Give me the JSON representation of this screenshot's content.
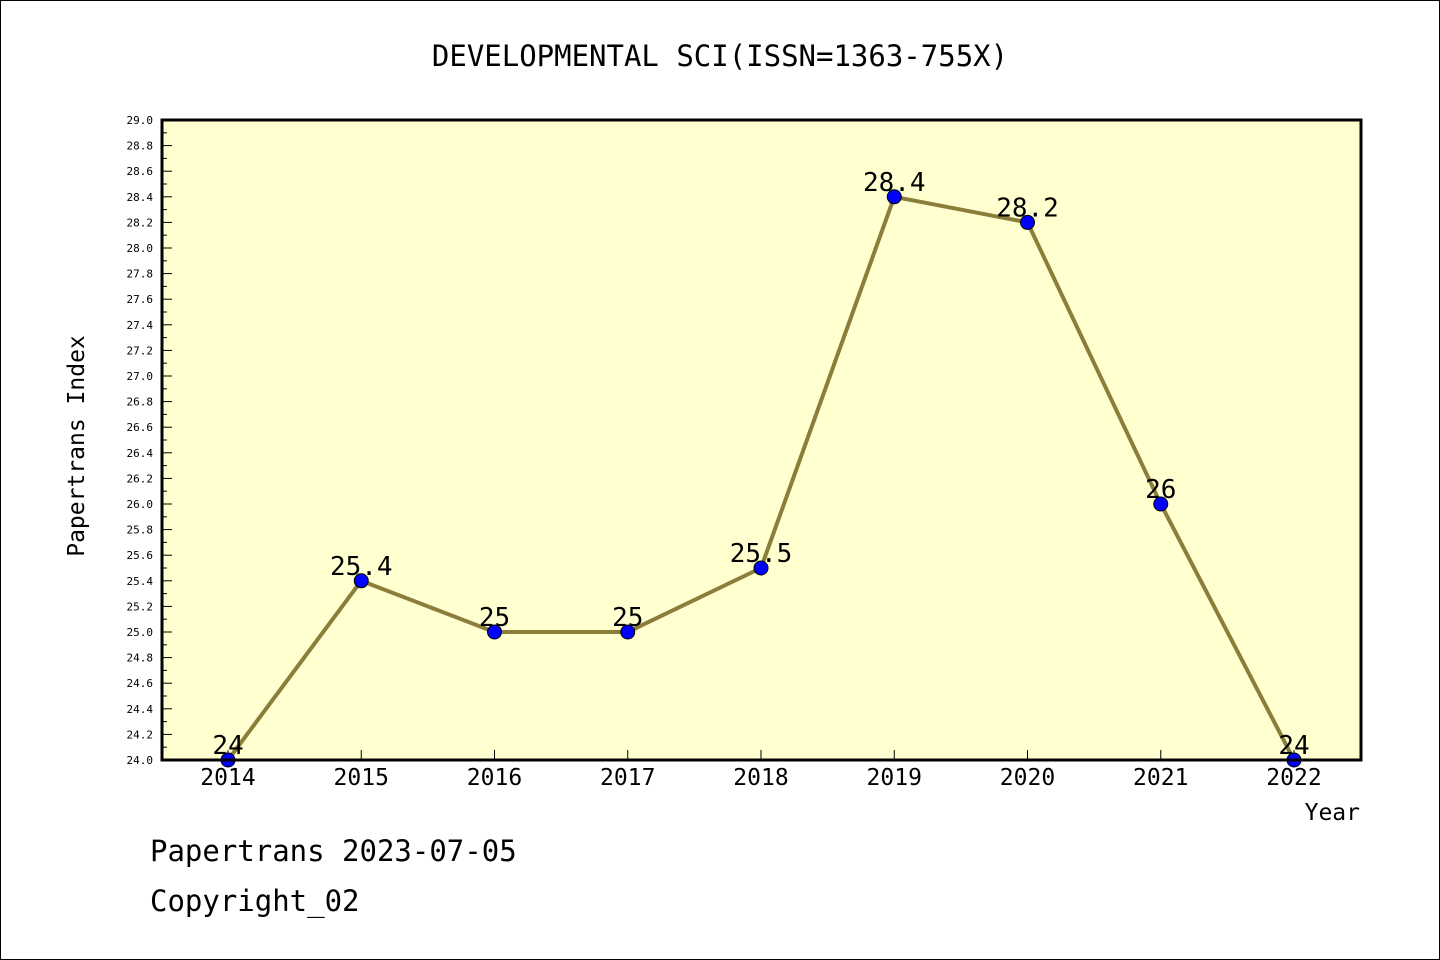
{
  "chart_data": {
    "type": "line",
    "title": "DEVELOPMENTAL SCI(ISSN=1363-755X)",
    "xlabel": "Year",
    "ylabel": "Papertrans Index",
    "categories": [
      "2014",
      "2015",
      "2016",
      "2017",
      "2018",
      "2019",
      "2020",
      "2021",
      "2022"
    ],
    "series": [
      {
        "values": [
          24,
          25.4,
          25,
          25,
          25.5,
          28.4,
          28.2,
          26,
          24
        ],
        "data_labels": [
          "24",
          "25.4",
          "25",
          "25",
          "25.5",
          "28.4",
          "28.2",
          "26",
          "24"
        ]
      }
    ],
    "ylim": [
      24.0,
      29.0
    ],
    "y_ticks": [
      "24.0",
      "24.2",
      "24.4",
      "24.6",
      "24.8",
      "25.0",
      "25.2",
      "25.4",
      "25.6",
      "25.8",
      "26.0",
      "26.2",
      "26.4",
      "26.6",
      "26.8",
      "27.0",
      "27.2",
      "27.4",
      "27.6",
      "27.8",
      "28.0",
      "28.2",
      "28.4",
      "28.6",
      "28.8",
      "29.0"
    ],
    "grid": false,
    "legend": "none",
    "colors": {
      "plot_background": "#ffffd0",
      "line": "#8b7d3a",
      "marker": "#0000ff"
    }
  },
  "footer": {
    "line1": "Papertrans 2023-07-05",
    "line2": "Copyright_02"
  }
}
